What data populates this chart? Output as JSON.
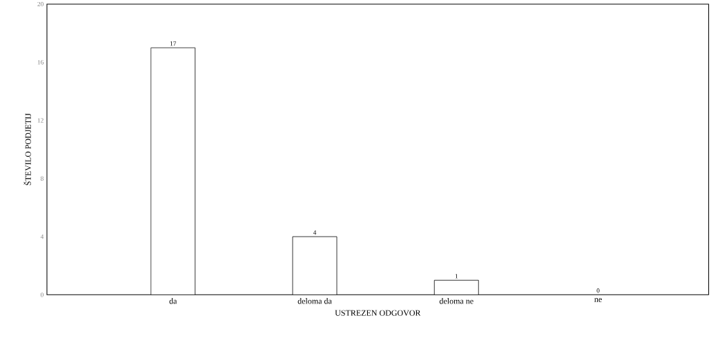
{
  "chart_data": {
    "type": "bar",
    "xlabel": "USTREZEN ODGOVOR",
    "ylabel": "ŠTEVILO PODJETIJ",
    "categories": [
      "da",
      "deloma da",
      "deloma ne",
      "ne"
    ],
    "values": [
      17,
      4,
      1,
      0
    ],
    "color": "#ffffff",
    "ylim": [
      0,
      20
    ],
    "yticks": [
      0,
      4,
      8,
      12,
      16,
      20
    ],
    "data_labels": true,
    "grid": false
  }
}
